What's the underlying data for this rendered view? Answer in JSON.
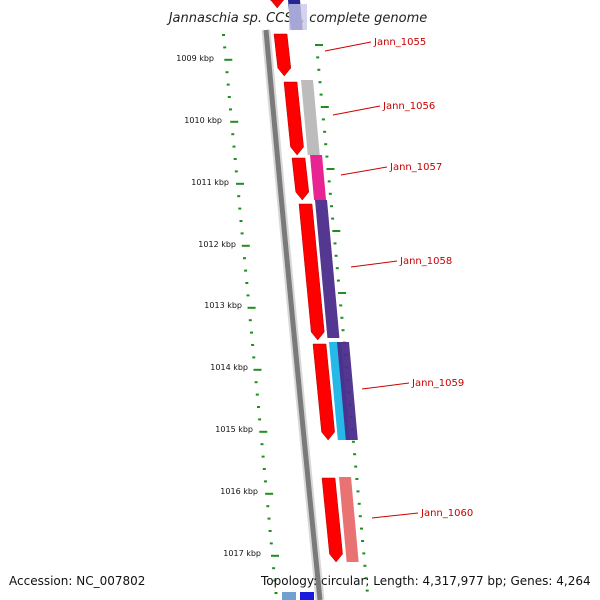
{
  "title": "Jannaschia sp. CCS1, complete genome",
  "footer": {
    "accession": "Accession: NC_007802",
    "topology": "Topology: circular; Length: 4,317,977 bp; Genes: 4,264"
  },
  "ruler": {
    "unit": "kbp",
    "labels": [
      "1009 kbp",
      "1010 kbp",
      "1011 kbp",
      "1012 kbp",
      "1013 kbp",
      "1014 kbp",
      "1015 kbp",
      "1016 kbp",
      "1017 kbp"
    ]
  },
  "genes": [
    {
      "name": "Jann_1055"
    },
    {
      "name": "Jann_1056"
    },
    {
      "name": "Jann_1057"
    },
    {
      "name": "Jann_1058"
    },
    {
      "name": "Jann_1059"
    },
    {
      "name": "Jann_1060"
    }
  ],
  "colors": {
    "cds": "#ff0000",
    "backbone": "#7a7a7a",
    "tick": "#1f8f1f",
    "label": "#cc0000",
    "gene_1055": "#1a1a8c",
    "gene_1056": "#b8b8b8",
    "gene_1057": "#e6188c",
    "gene_1058": "#4a2c8a",
    "gene_1059": "#1ab4e6",
    "gene_1060": "#e86a6a"
  }
}
